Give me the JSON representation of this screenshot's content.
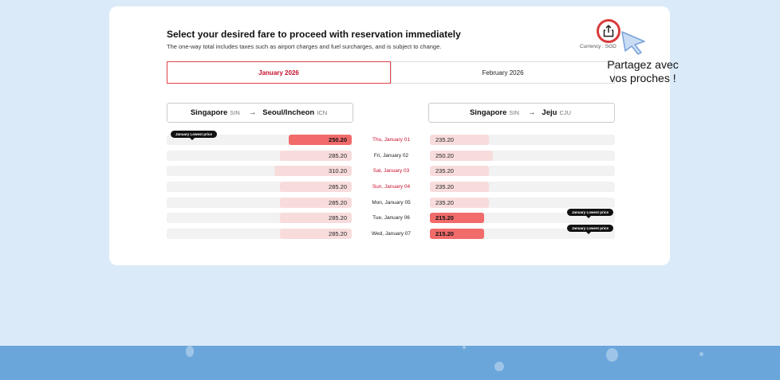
{
  "header": {
    "title": "Select your desired fare to proceed with reservation immediately",
    "subtitle": "The one-way total includes taxes such as airport charges and fuel surcharges, and is subject to change.",
    "currency_label": "Currency : SGD"
  },
  "tabs": [
    {
      "label": "January 2026",
      "active": true
    },
    {
      "label": "February 2026",
      "active": false
    }
  ],
  "routes": {
    "left": {
      "origin": "Singapore",
      "origin_code": "SIN",
      "destination": "Seoul/Incheon",
      "destination_code": "ICN",
      "arrow": "→"
    },
    "right": {
      "origin": "Singapore",
      "origin_code": "SIN",
      "destination": "Jeju",
      "destination_code": "CJU",
      "arrow": "→"
    }
  },
  "badge_label": "January Lowest price",
  "dates": [
    {
      "label": "Thu, January 01",
      "highlight": true
    },
    {
      "label": "Fri, January 02",
      "highlight": false
    },
    {
      "label": "Sat, January 03",
      "highlight": true
    },
    {
      "label": "Sun, January 04",
      "highlight": true
    },
    {
      "label": "Mon, January 05",
      "highlight": false
    },
    {
      "label": "Tue, January 06",
      "highlight": false
    },
    {
      "label": "Wed, January 07",
      "highlight": false
    }
  ],
  "left_fares": [
    "250.20",
    "285.20",
    "310.20",
    "285.20",
    "285.20",
    "285.20",
    "285.20"
  ],
  "right_fares": [
    "235.20",
    "250.20",
    "235.20",
    "235.20",
    "235.20",
    "215.20",
    "215.20"
  ],
  "share": {
    "label_line1": "Partagez avec",
    "label_line2": "vos proches !",
    "icon": "share-icon"
  },
  "colors": {
    "accent": "#c8102e",
    "lowest_bar": "#f16b6b",
    "fare_bar": "#f8dcdc",
    "page_bg": "#dbeaf8",
    "band": "#6ba6db"
  }
}
